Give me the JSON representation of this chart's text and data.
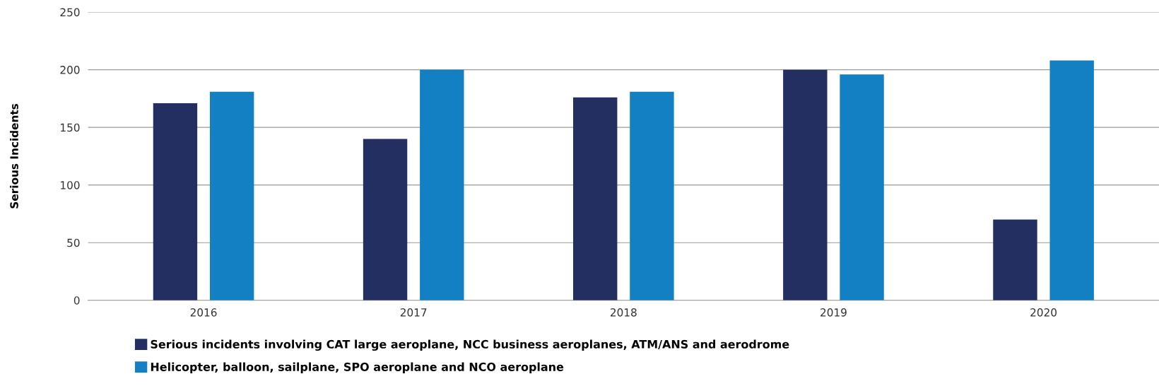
{
  "chart_data": {
    "type": "bar",
    "ylabel": "Serious Incidents",
    "categories": [
      "2016",
      "2017",
      "2018",
      "2019",
      "2020"
    ],
    "series": [
      {
        "name": "Serious incidents involving CAT large aeroplane, NCC business aeroplanes, ATM/ANS and aerodrome",
        "color": "#232f61",
        "values": [
          171,
          140,
          176,
          200,
          70
        ]
      },
      {
        "name": "Helicopter, balloon, sailplane, SPO aeroplane and NCO aeroplane",
        "color": "#1380c4",
        "values": [
          181,
          200,
          181,
          196,
          208
        ]
      }
    ],
    "ylim": [
      0,
      250
    ],
    "yticks": [
      0,
      50,
      100,
      150,
      200,
      250
    ],
    "grid": "y",
    "legend": "bottom left"
  }
}
